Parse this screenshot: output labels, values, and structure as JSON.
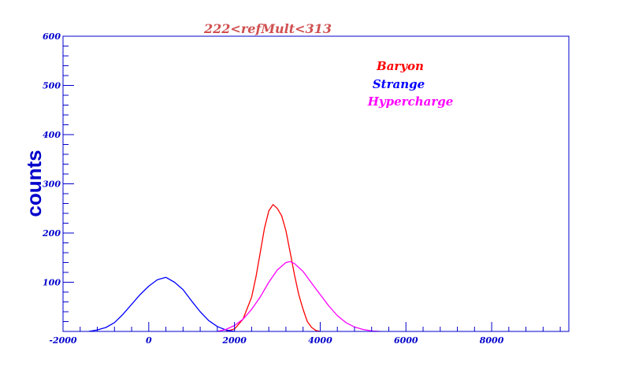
{
  "chart_data": {
    "type": "line",
    "title": "222<refMult<313",
    "xlabel": "",
    "ylabel": "counts",
    "xlim": [
      -2000,
      9800
    ],
    "ylim": [
      0,
      600
    ],
    "xticks": [
      -2000,
      0,
      2000,
      4000,
      6000,
      8000
    ],
    "yticks": [
      100,
      200,
      300,
      400,
      500,
      600
    ],
    "grid": false,
    "legend_placement": "top-right",
    "colors": {
      "axes": "#0000cc",
      "title": "#d05050",
      "background": "#ffffff"
    },
    "series": [
      {
        "name": "Baryon",
        "color": "#ff0000",
        "x": [
          1800,
          2000,
          2200,
          2400,
          2500,
          2600,
          2700,
          2800,
          2900,
          3000,
          3100,
          3200,
          3300,
          3400,
          3500,
          3600,
          3700,
          3800,
          3900,
          4000
        ],
        "y": [
          0,
          5,
          25,
          70,
          110,
          160,
          210,
          245,
          258,
          250,
          235,
          205,
          160,
          115,
          75,
          45,
          20,
          8,
          2,
          0
        ]
      },
      {
        "name": "Strange",
        "color": "#0000ff",
        "x": [
          -1400,
          -1200,
          -1000,
          -800,
          -600,
          -400,
          -200,
          0,
          200,
          400,
          600,
          800,
          1000,
          1200,
          1400,
          1600,
          1800,
          2000
        ],
        "y": [
          0,
          3,
          8,
          18,
          35,
          55,
          75,
          92,
          105,
          110,
          100,
          85,
          62,
          40,
          22,
          10,
          3,
          0
        ]
      },
      {
        "name": "Hypercharge",
        "color": "#ff00ff",
        "x": [
          1600,
          1800,
          2000,
          2200,
          2400,
          2600,
          2800,
          3000,
          3200,
          3300,
          3400,
          3600,
          3800,
          4000,
          4200,
          4400,
          4600,
          4800,
          5000,
          5200,
          5400
        ],
        "y": [
          0,
          4,
          12,
          25,
          45,
          70,
          100,
          125,
          140,
          142,
          138,
          122,
          98,
          75,
          52,
          32,
          18,
          9,
          4,
          1,
          0
        ]
      }
    ]
  }
}
